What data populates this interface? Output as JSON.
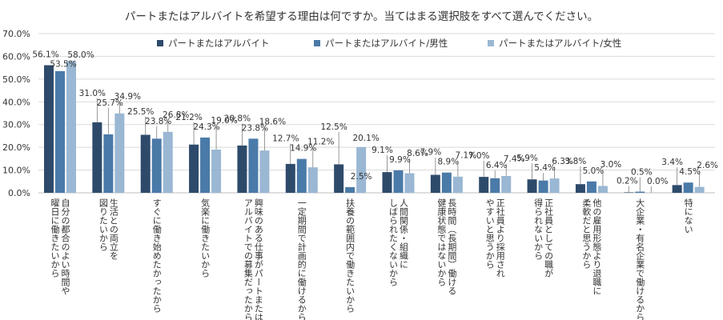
{
  "chart_data": {
    "type": "bar",
    "title": "パートまたはアルバイトを希望する理由は何ですか。当てはまる選択肢をすべて選んでください。",
    "xlabel": "",
    "ylabel": "",
    "ylim": [
      0,
      70
    ],
    "yticks": [
      "0.0%",
      "10.0%",
      "20.0%",
      "30.0%",
      "40.0%",
      "50.0%",
      "60.0%",
      "70.0%"
    ],
    "grid": true,
    "legend_position": "top",
    "categories": [
      [
        "自分の都合のよい時間や",
        "曜日に働きたいから"
      ],
      [
        "生活との両立を",
        "図りたいから"
      ],
      [
        "すぐに働き始めたかったから"
      ],
      [
        "気楽に働きたいから"
      ],
      [
        "興味のある仕事がパートまたは",
        "アルバイトでの募集だったから"
      ],
      [
        "一定期間で計画的に働けるから"
      ],
      [
        "扶養の範囲内で働きたいから"
      ],
      [
        "人間関係・組織に",
        "しばられたくないから"
      ],
      [
        "長時間（長期間）働ける",
        "健康状態ではないから"
      ],
      [
        "正社員より採用され",
        "やすいと思うから"
      ],
      [
        "正社員としての職が",
        "得られないから"
      ],
      [
        "他の雇用形態より退職に",
        "柔軟だと思うから"
      ],
      [
        "大企業・有名企業で働けるから"
      ],
      [
        "特にない"
      ]
    ],
    "series": [
      {
        "name": "パートまたはアルバイト",
        "color": "#2e4a6b",
        "values": [
          56.1,
          31.0,
          25.5,
          21.2,
          20.8,
          12.7,
          12.5,
          9.1,
          7.9,
          7.0,
          5.9,
          3.8,
          0.2,
          3.4
        ],
        "labels": [
          "56.1%",
          "31.0%",
          "25.5%",
          "21.2%",
          "20.8%",
          "12.7%",
          "12.5%",
          "9.1%",
          "7.9%",
          "7.0%",
          "5.9%",
          "3.8%",
          "0.2%",
          "3.4%"
        ]
      },
      {
        "name": "パートまたはアルバイト/男性",
        "color": "#4a7aa8",
        "values": [
          53.5,
          25.7,
          23.8,
          24.3,
          23.8,
          14.9,
          2.5,
          9.9,
          8.9,
          6.4,
          5.4,
          5.0,
          0.5,
          4.5
        ],
        "labels": [
          "53.5%",
          "25.7%",
          "23.8%",
          "24.3%",
          "23.8%",
          "14.9%",
          "2.5%",
          "9.9%",
          "8.9%",
          "6.4%",
          "5.4%",
          "5.0%",
          "0.5%",
          "4.5%"
        ]
      },
      {
        "name": "パートまたはアルバイト/女性",
        "color": "#9ab7d3",
        "values": [
          58.0,
          34.9,
          26.8,
          19.0,
          18.6,
          11.2,
          20.1,
          8.6,
          7.1,
          7.4,
          6.3,
          3.0,
          0.0,
          2.6
        ],
        "labels": [
          "58.0%",
          "34.9%",
          "26.8%",
          "19.0%",
          "18.6%",
          "11.2%",
          "20.1%",
          "8.6%",
          "7.1%",
          "7.4%",
          "6.3%",
          "3.0%",
          "0.0%",
          "2.6%"
        ]
      }
    ]
  }
}
